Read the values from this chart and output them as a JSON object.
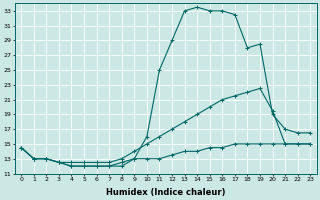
{
  "xlabel": "Humidex (Indice chaleur)",
  "ylabel": "",
  "bg_color": "#cce8e5",
  "line_color": "#006666",
  "grid_color": "#b0d8d4",
  "xlim": [
    -0.5,
    23.5
  ],
  "ylim": [
    11,
    34
  ],
  "yticks": [
    11,
    13,
    15,
    17,
    19,
    21,
    23,
    25,
    27,
    29,
    31,
    33
  ],
  "xticks": [
    0,
    1,
    2,
    3,
    4,
    5,
    6,
    7,
    8,
    9,
    10,
    11,
    12,
    13,
    14,
    15,
    16,
    17,
    18,
    19,
    20,
    21,
    22,
    23
  ],
  "series": [
    {
      "x": [
        0,
        1,
        2,
        3,
        4,
        5,
        6,
        7,
        8,
        9,
        10,
        11,
        12,
        13,
        14,
        15,
        16,
        17,
        18,
        19,
        20,
        21,
        22,
        23
      ],
      "y": [
        14.5,
        13,
        13,
        12.5,
        12,
        12,
        12,
        12,
        12,
        13,
        16,
        25,
        29,
        33,
        33.5,
        33,
        33,
        32.5,
        28,
        28.5,
        19,
        17,
        16.5,
        16.5
      ]
    },
    {
      "x": [
        0,
        1,
        2,
        3,
        4,
        5,
        6,
        7,
        8,
        9,
        10,
        11,
        12,
        13,
        14,
        15,
        16,
        17,
        18,
        19,
        20,
        21,
        22,
        23
      ],
      "y": [
        14.5,
        13,
        13,
        12.5,
        12.5,
        12.5,
        12.5,
        12.5,
        13,
        14,
        15,
        16,
        17,
        18,
        19,
        20,
        21,
        21.5,
        22,
        22.5,
        19.5,
        15,
        15,
        15
      ]
    },
    {
      "x": [
        0,
        1,
        2,
        3,
        4,
        5,
        6,
        7,
        8,
        9,
        10,
        11,
        12,
        13,
        14,
        15,
        16,
        17,
        18,
        19,
        20,
        21,
        22,
        23
      ],
      "y": [
        14.5,
        13,
        13,
        12.5,
        12,
        12,
        12,
        12,
        12.5,
        13,
        13,
        13,
        13.5,
        14,
        14,
        14.5,
        14.5,
        15,
        15,
        15,
        15,
        15,
        15,
        15
      ]
    }
  ]
}
